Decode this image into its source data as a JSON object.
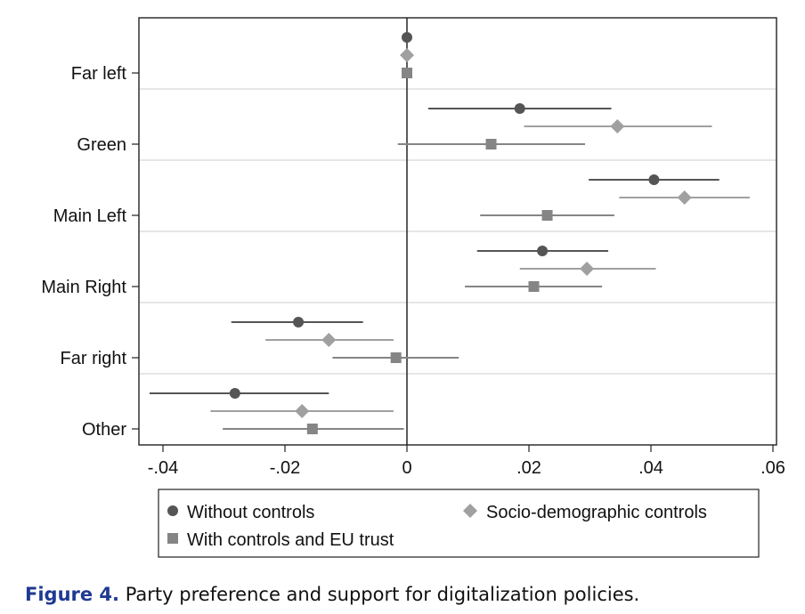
{
  "chart_data": {
    "type": "scatter",
    "subtype": "coefficient-plot-with-confidence-intervals",
    "orientation": "horizontal",
    "categories": [
      "Far left",
      "Green",
      "Main Left",
      "Main Right",
      "Far right",
      "Other"
    ],
    "xlim": [
      -0.045,
      0.06
    ],
    "x_ticks": [
      -0.04,
      -0.02,
      0,
      0.02,
      0.04,
      0.06
    ],
    "x_tick_labels": [
      "-.04",
      "-.02",
      "0",
      ".02",
      ".04",
      ".06"
    ],
    "reference_line": 0,
    "grid": "horizontal lines between categories",
    "series": [
      {
        "name": "Without controls",
        "marker": "circle",
        "color": "#555555",
        "estimates": [
          0,
          0.0185,
          0.0405,
          0.0222,
          -0.0178,
          -0.0282
        ],
        "ci_low": [
          0,
          0.0035,
          0.0298,
          0.0115,
          -0.0288,
          -0.0422
        ],
        "ci_high": [
          0,
          0.0335,
          0.0512,
          0.033,
          -0.0072,
          -0.0128
        ]
      },
      {
        "name": "Socio-demographic controls",
        "marker": "diamond",
        "color": "#a0a0a0",
        "estimates": [
          0,
          0.0345,
          0.0455,
          0.0295,
          -0.0128,
          -0.0172
        ],
        "ci_low": [
          0,
          0.0192,
          0.0348,
          0.0185,
          -0.0232,
          -0.0322
        ],
        "ci_high": [
          0,
          0.05,
          0.0562,
          0.0408,
          -0.0022,
          -0.0022
        ]
      },
      {
        "name": "With controls and EU trust",
        "marker": "square",
        "color": "#858585",
        "estimates": [
          0,
          0.0138,
          0.023,
          0.0208,
          -0.0018,
          -0.0155
        ],
        "ci_low": [
          0,
          -0.0015,
          0.012,
          0.0095,
          -0.0122,
          -0.0302
        ],
        "ci_high": [
          0,
          0.0292,
          0.034,
          0.032,
          0.0085,
          -0.0005
        ]
      }
    ],
    "legend": {
      "entries": [
        "Without controls",
        "Socio-demographic controls",
        "With controls and EU trust"
      ],
      "placement": "bottom"
    }
  },
  "caption": {
    "label": "Figure 4.",
    "text": " Party preference and support for digitalization policies."
  }
}
